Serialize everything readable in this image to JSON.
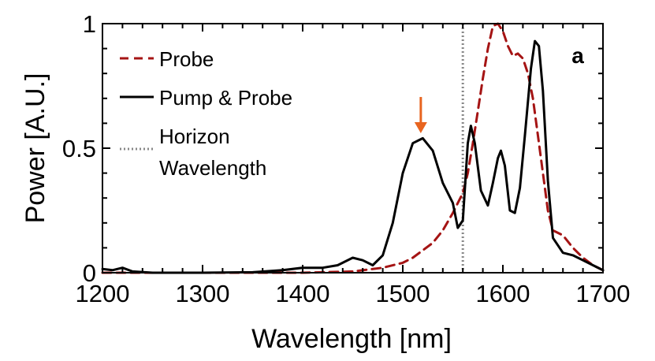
{
  "chart_data": {
    "type": "line",
    "title": "",
    "xlabel": "Wavelength [nm]",
    "ylabel": "Power [A.U.]",
    "xlim": [
      1200,
      1700
    ],
    "ylim": [
      0,
      1
    ],
    "x_ticks": [
      1200,
      1300,
      1400,
      1500,
      1600,
      1700
    ],
    "x_tick_labels": [
      "1200",
      "1300",
      "1400",
      "1500",
      "1600",
      "1700"
    ],
    "y_ticks": [
      0,
      0.5,
      1
    ],
    "y_tick_labels": [
      "0",
      "0.5",
      "1"
    ],
    "grid": false,
    "legend_position": "top-left",
    "panel_label": "a",
    "series": [
      {
        "name": "Probe",
        "style": "dashed",
        "color": "#a51414",
        "x": [
          1200,
          1300,
          1400,
          1450,
          1480,
          1500,
          1510,
          1520,
          1530,
          1540,
          1550,
          1560,
          1565,
          1570,
          1575,
          1580,
          1585,
          1590,
          1595,
          1600,
          1605,
          1610,
          1615,
          1620,
          1625,
          1630,
          1635,
          1640,
          1645,
          1650,
          1660,
          1670,
          1680,
          1690,
          1700
        ],
        "y": [
          0,
          0,
          0,
          0.005,
          0.02,
          0.04,
          0.06,
          0.09,
          0.12,
          0.17,
          0.24,
          0.32,
          0.4,
          0.52,
          0.65,
          0.78,
          0.9,
          0.99,
          1.0,
          0.97,
          0.91,
          0.87,
          0.88,
          0.86,
          0.8,
          0.7,
          0.55,
          0.4,
          0.25,
          0.17,
          0.15,
          0.1,
          0.06,
          0.03,
          0.01
        ]
      },
      {
        "name": "Pump & Probe",
        "style": "solid",
        "color": "#000000",
        "x": [
          1200,
          1210,
          1220,
          1230,
          1250,
          1300,
          1350,
          1380,
          1400,
          1420,
          1435,
          1450,
          1460,
          1470,
          1480,
          1490,
          1500,
          1510,
          1520,
          1530,
          1540,
          1550,
          1555,
          1560,
          1565,
          1568,
          1572,
          1578,
          1585,
          1590,
          1595,
          1598,
          1602,
          1607,
          1612,
          1617,
          1622,
          1628,
          1632,
          1636,
          1640,
          1645,
          1650,
          1660,
          1670,
          1680,
          1690,
          1700
        ],
        "y": [
          0.015,
          0.01,
          0.02,
          0.005,
          0,
          0,
          0.002,
          0.01,
          0.02,
          0.02,
          0.03,
          0.06,
          0.05,
          0.03,
          0.07,
          0.2,
          0.4,
          0.52,
          0.54,
          0.49,
          0.36,
          0.28,
          0.18,
          0.21,
          0.52,
          0.59,
          0.52,
          0.33,
          0.27,
          0.36,
          0.46,
          0.49,
          0.43,
          0.25,
          0.24,
          0.34,
          0.55,
          0.82,
          0.93,
          0.91,
          0.73,
          0.37,
          0.14,
          0.08,
          0.07,
          0.05,
          0.03,
          0.01
        ]
      }
    ],
    "reference_line": {
      "name": "Horizon Wavelength",
      "label_lines": [
        "Horizon",
        "Wavelength"
      ],
      "x": 1560,
      "style": "dotted",
      "color": "#888888"
    },
    "annotations": [
      {
        "type": "arrow",
        "x": 1518,
        "y_tip": 0.56,
        "color": "#e8641f"
      }
    ]
  }
}
